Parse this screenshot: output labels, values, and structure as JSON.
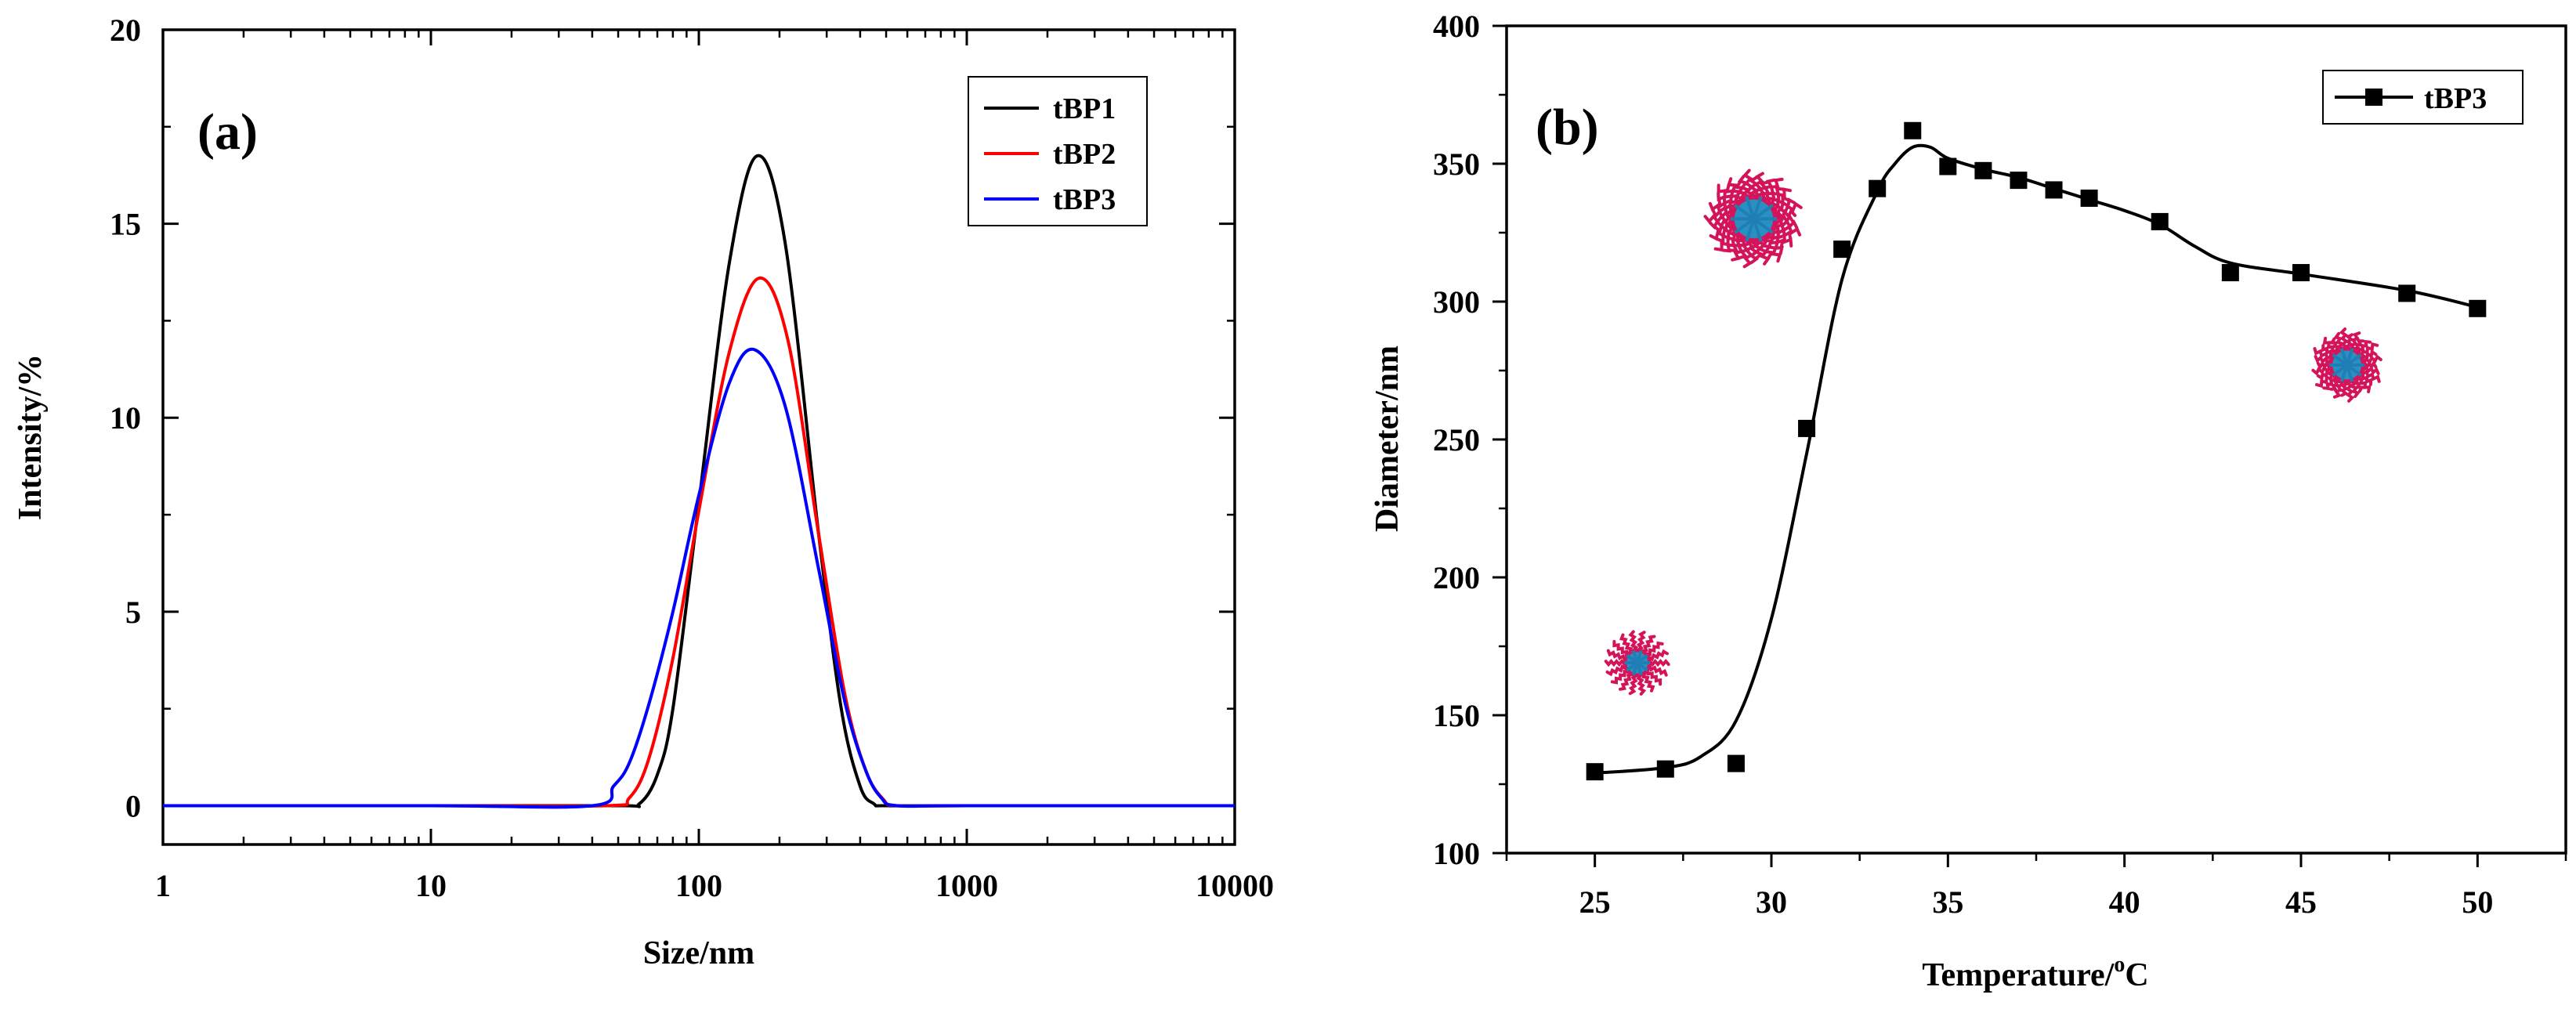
{
  "chart_data": [
    {
      "type": "line",
      "panel_label": "(a)",
      "xlabel": "Size/nm",
      "ylabel": "Intensity/%",
      "xscale": "log",
      "xlim": [
        1,
        10000
      ],
      "ylim": [
        -1,
        20
      ],
      "xticks": [
        1,
        10,
        100,
        1000,
        10000
      ],
      "xtick_labels": [
        "1",
        "10",
        "100",
        "1000",
        "10000"
      ],
      "yticks": [
        0,
        5,
        10,
        15,
        20
      ],
      "ytick_labels": [
        "0",
        "5",
        "10",
        "15",
        "20"
      ],
      "legend_position": "top-right",
      "series": [
        {
          "name": "tBP1",
          "color": "#000000",
          "peak_x": 165,
          "peak_y": 16.75,
          "x": [
            1,
            10,
            50,
            60,
            70,
            80,
            100,
            130,
            165,
            210,
            280,
            340,
            400,
            450,
            500,
            1000,
            10000
          ],
          "y": [
            0,
            0,
            0,
            0.05,
            0.8,
            2.5,
            7.8,
            14.0,
            16.75,
            14.5,
            7.0,
            2.5,
            0.5,
            0.05,
            0,
            0,
            0
          ]
        },
        {
          "name": "tBP2",
          "color": "#ff0000",
          "peak_x": 168,
          "peak_y": 13.6,
          "x": [
            1,
            10,
            45,
            55,
            65,
            80,
            100,
            130,
            168,
            215,
            280,
            350,
            420,
            490,
            550,
            1000,
            10000
          ],
          "y": [
            0,
            0,
            0,
            0.2,
            1.2,
            3.8,
            7.6,
            11.7,
            13.6,
            12.0,
            7.0,
            2.9,
            0.9,
            0.15,
            0,
            0,
            0
          ]
        },
        {
          "name": "tBP3",
          "color": "#0000ff",
          "peak_x": 162,
          "peak_y": 11.75,
          "x": [
            1,
            10,
            40,
            48,
            55,
            65,
            80,
            100,
            130,
            162,
            210,
            280,
            350,
            420,
            480,
            550,
            1000,
            10000
          ],
          "y": [
            0,
            0,
            0,
            0.5,
            1.1,
            2.6,
            5.0,
            8.0,
            10.9,
            11.75,
            10.3,
            6.1,
            2.7,
            0.9,
            0.2,
            0,
            0,
            0
          ]
        }
      ]
    },
    {
      "type": "line",
      "panel_label": "(b)",
      "xlabel": "Temperature/",
      "xlabel_sup": "o",
      "xlabel_unit": "C",
      "ylabel": "Diameter/nm",
      "xlim": [
        22.5,
        52.5
      ],
      "ylim": [
        100,
        400
      ],
      "xticks": [
        25,
        30,
        35,
        40,
        45,
        50
      ],
      "xtick_labels": [
        "25",
        "30",
        "35",
        "40",
        "45",
        "50"
      ],
      "yticks": [
        100,
        150,
        200,
        250,
        300,
        350,
        400
      ],
      "ytick_labels": [
        "100",
        "150",
        "200",
        "250",
        "300",
        "350",
        "400"
      ],
      "legend_position": "top-right",
      "series": [
        {
          "name": "tBP3",
          "color": "#000000",
          "marker": "square",
          "x": [
            25,
            27,
            29,
            31,
            32,
            33,
            34,
            35,
            36,
            37,
            38,
            39,
            41,
            43,
            45,
            48,
            50
          ],
          "y": [
            129.5,
            130.5,
            132.5,
            254,
            319,
            341,
            362,
            349,
            347.5,
            344,
            340.5,
            337.5,
            329,
            310.5,
            310.5,
            303,
            297.5
          ]
        }
      ],
      "fit_curve": {
        "x": [
          25,
          27,
          28,
          29,
          30,
          31,
          32,
          33,
          33.5,
          34,
          34.5,
          35,
          36,
          37,
          38,
          39,
          40,
          41,
          42,
          43,
          45,
          48,
          50
        ],
        "y": [
          129,
          131,
          135,
          148,
          185,
          245,
          308,
          340,
          350,
          356,
          356,
          352,
          348,
          345,
          341,
          337,
          333,
          328,
          320,
          314,
          310,
          304,
          298
        ]
      },
      "micelle_icons": [
        {
          "name": "small-micelle",
          "x": 26.2,
          "y": 169
        },
        {
          "name": "large-micelle",
          "x": 29.5,
          "y": 330
        },
        {
          "name": "medium-micelle",
          "x": 46.3,
          "y": 277
        }
      ]
    }
  ]
}
